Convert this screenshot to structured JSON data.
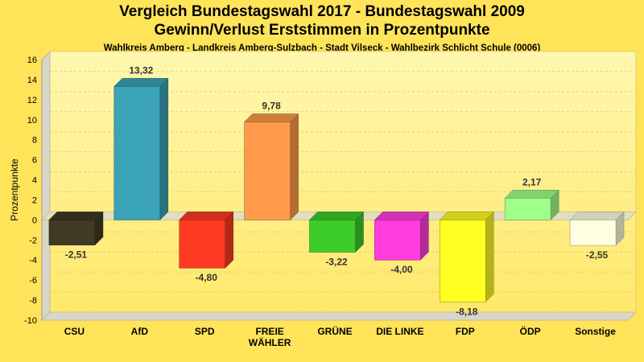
{
  "title_line1": "Vergleich Bundestagswahl 2017 - Bundestagswahl 2009",
  "title_line2": "Gewinn/Verlust Erststimmen in Prozentpunkte",
  "subtitle": "Wahlkreis Amberg - Landkreis Amberg-Sulzbach - Stadt Vilseck - Wahlbezirk Schlicht Schule (0006)",
  "chart_data": {
    "type": "bar",
    "title": "Vergleich Bundestagswahl 2017 - Bundestagswahl 2009 Gewinn/Verlust Erststimmen in Prozentpunkte",
    "xlabel": "",
    "ylabel": "Prozentpunkte",
    "ylim": [
      -10,
      16
    ],
    "yticks": [
      16,
      14,
      12,
      10,
      8,
      6,
      4,
      2,
      0,
      -2,
      -4,
      -6,
      -8,
      -10
    ],
    "grid": true,
    "categories": [
      [
        "CSU"
      ],
      [
        "AfD"
      ],
      [
        "SPD"
      ],
      [
        "FREIE",
        "WÄHLER"
      ],
      [
        "GRÜNE"
      ],
      [
        "DIE LINKE"
      ],
      [
        "FDP"
      ],
      [
        "ÖDP"
      ],
      [
        "Sonstige"
      ]
    ],
    "values": [
      -2.51,
      13.32,
      -4.8,
      9.78,
      -3.22,
      -4.0,
      -8.18,
      2.17,
      -2.55
    ],
    "value_labels": [
      "-2,51",
      "13,32",
      "-4,80",
      "9,78",
      "-3,22",
      "-4,00",
      "-8,18",
      "2,17",
      "-2,55"
    ],
    "colors": [
      "#3f3a22",
      "#3aa3b5",
      "#ff3a22",
      "#ff9a4a",
      "#3ccc28",
      "#ff3cdc",
      "#ffff22",
      "#a0ff88",
      "#ffffe0"
    ]
  }
}
